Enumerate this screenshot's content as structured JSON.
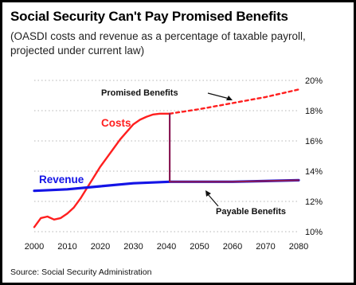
{
  "title": "Social Security Can't Pay Promised Benefits",
  "subtitle": "(OASDI costs and revenue as a percentage of taxable payroll, projected under current law)",
  "source": "Source: Social Security Administration",
  "chart_data": {
    "type": "line",
    "xlim": [
      2000,
      2080
    ],
    "ylim": [
      10,
      20
    ],
    "x_ticks": [
      "2000",
      "2010",
      "2020",
      "2030",
      "2040",
      "2050",
      "2060",
      "2070",
      "2080"
    ],
    "y_ticks": [
      "10%",
      "12%",
      "14%",
      "16%",
      "18%",
      "20%"
    ],
    "grid": true,
    "series": [
      {
        "name": "Costs",
        "color": "#ff1f1f",
        "style": "solid",
        "x": [
          2000,
          2002,
          2004,
          2006,
          2008,
          2010,
          2012,
          2014,
          2016,
          2018,
          2020,
          2022,
          2024,
          2026,
          2028,
          2030,
          2032,
          2034,
          2036,
          2038,
          2040,
          2041
        ],
        "y": [
          10.3,
          10.9,
          11.0,
          10.8,
          10.9,
          11.2,
          11.6,
          12.2,
          12.9,
          13.6,
          14.3,
          14.9,
          15.5,
          16.1,
          16.6,
          17.1,
          17.4,
          17.6,
          17.75,
          17.8,
          17.8,
          17.8
        ]
      },
      {
        "name": "Promised Benefits",
        "color": "#ff1f1f",
        "style": "dashed",
        "x": [
          2041,
          2050,
          2060,
          2070,
          2080
        ],
        "y": [
          17.8,
          18.1,
          18.5,
          18.9,
          19.4
        ]
      },
      {
        "name": "Revenue",
        "color": "#1414e6",
        "style": "solid",
        "x": [
          2000,
          2010,
          2020,
          2030,
          2041,
          2050,
          2060,
          2070,
          2080
        ],
        "y": [
          12.7,
          12.8,
          13.0,
          13.2,
          13.3,
          13.3,
          13.3,
          13.35,
          13.4
        ]
      },
      {
        "name": "Payable Benefits",
        "color": "#8a1a55",
        "style": "solid",
        "x": [
          2041,
          2041,
          2050,
          2060,
          2070,
          2080
        ],
        "y": [
          17.8,
          13.3,
          13.3,
          13.3,
          13.35,
          13.4
        ]
      }
    ],
    "annotations": [
      "Promised Benefits",
      "Costs",
      "Revenue",
      "Payable Benefits"
    ]
  }
}
